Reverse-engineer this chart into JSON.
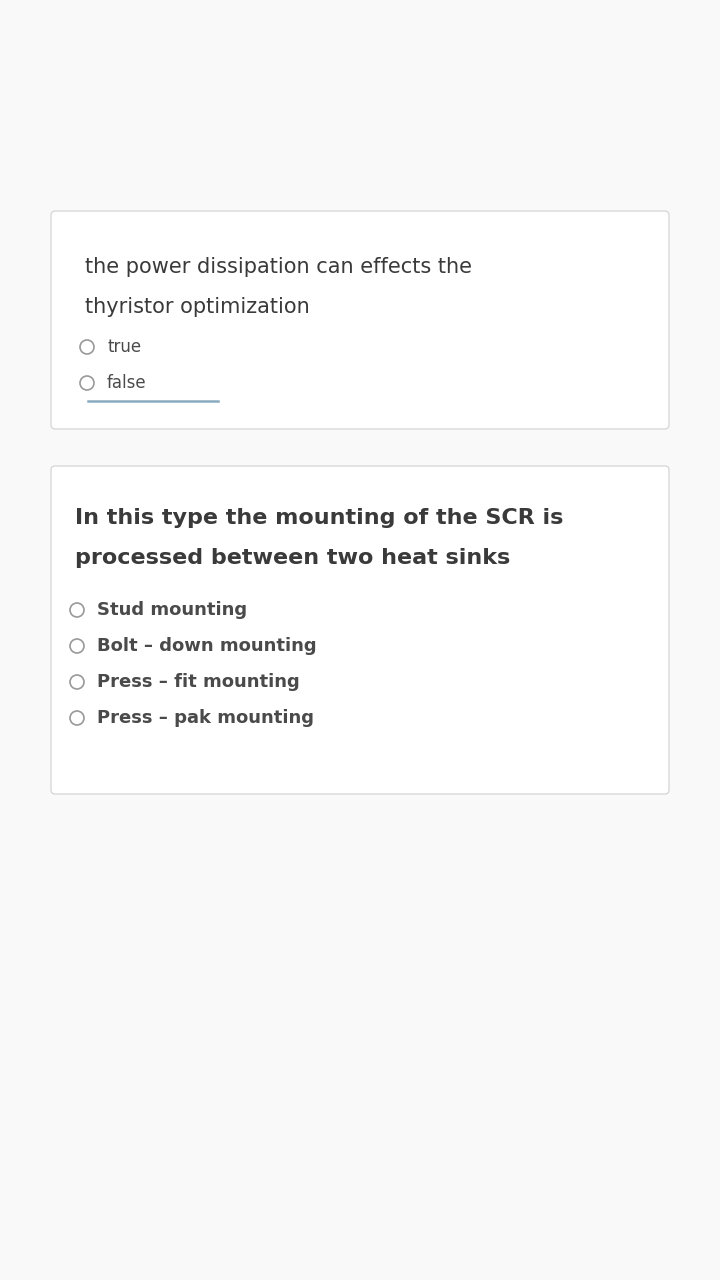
{
  "bg_color": "#f9f9f9",
  "card_color": "#ffffff",
  "card_border_color": "#d0d0d0",
  "question_color": "#3a3a3a",
  "option_color": "#4a4a4a",
  "radio_edge_color": "#999999",
  "underline_color": "#8aaabf",
  "q1_text_line1": "the power dissipation can effects the",
  "q1_text_line2": "thyristor optimization",
  "q1_options": [
    "true",
    "false"
  ],
  "q2_text_line1": "In this type the mounting of the SCR is",
  "q2_text_line2": "processed between two heat sinks",
  "q2_options": [
    "Stud mounting",
    "Bolt – down mounting",
    "Press – fit mounting",
    "Press – pak mounting"
  ],
  "figw": 7.2,
  "figh": 12.8,
  "dpi": 100
}
